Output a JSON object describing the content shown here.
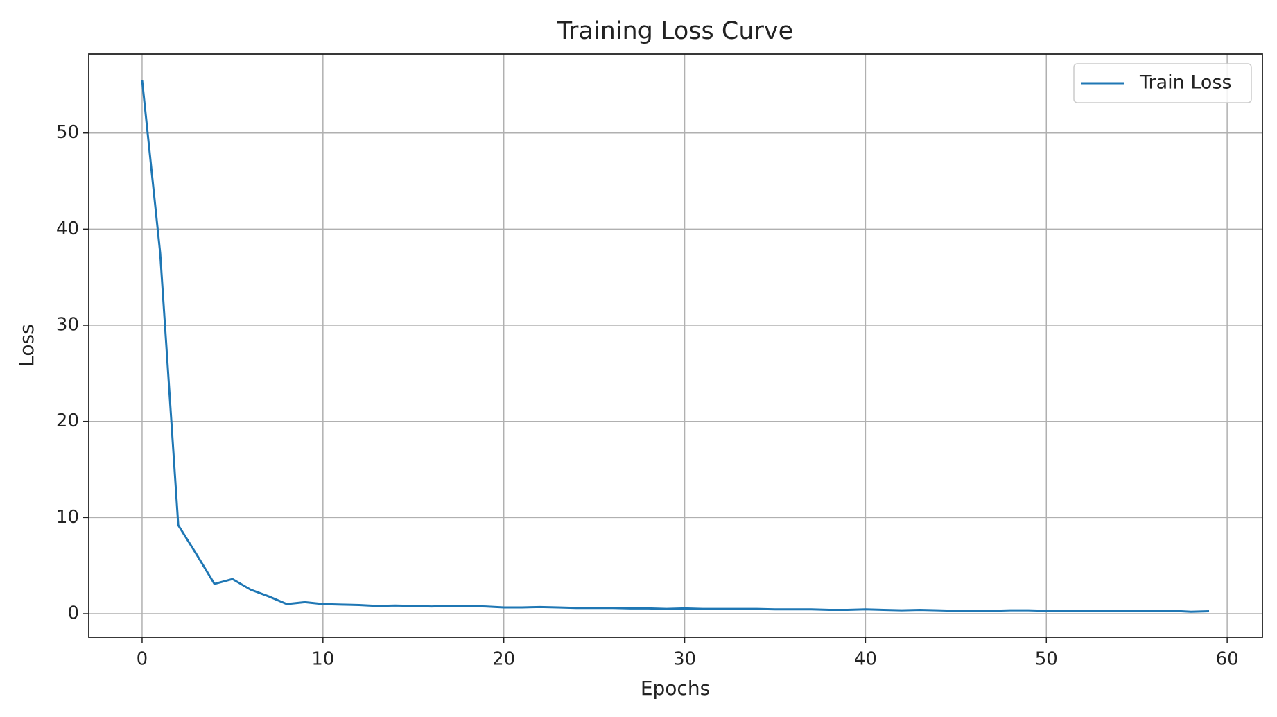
{
  "chart_data": {
    "type": "line",
    "title": "Training Loss Curve",
    "x_label": "Epochs",
    "y_label": "Loss",
    "x": [
      0,
      1,
      2,
      3,
      4,
      5,
      6,
      7,
      8,
      9,
      10,
      11,
      12,
      13,
      14,
      15,
      16,
      17,
      18,
      19,
      20,
      21,
      22,
      23,
      24,
      25,
      26,
      27,
      28,
      29,
      30,
      31,
      32,
      33,
      34,
      35,
      36,
      37,
      38,
      39,
      40,
      41,
      42,
      43,
      44,
      45,
      46,
      47,
      48,
      49,
      50,
      51,
      52,
      53,
      54,
      55,
      56,
      57,
      58,
      59
    ],
    "series": [
      {
        "name": "Train Loss",
        "color": "#1f77b4",
        "values": [
          55.5,
          37.5,
          9.2,
          6.2,
          3.1,
          3.6,
          2.5,
          1.8,
          1.0,
          1.2,
          1.0,
          0.95,
          0.9,
          0.8,
          0.85,
          0.8,
          0.75,
          0.8,
          0.8,
          0.75,
          0.65,
          0.65,
          0.7,
          0.65,
          0.6,
          0.6,
          0.6,
          0.55,
          0.55,
          0.5,
          0.55,
          0.5,
          0.5,
          0.5,
          0.5,
          0.45,
          0.45,
          0.45,
          0.4,
          0.4,
          0.45,
          0.4,
          0.35,
          0.4,
          0.35,
          0.3,
          0.3,
          0.3,
          0.35,
          0.35,
          0.3,
          0.3,
          0.3,
          0.3,
          0.3,
          0.25,
          0.3,
          0.3,
          0.2,
          0.25
        ]
      }
    ],
    "xlim": [
      -2.95,
      61.95
    ],
    "ylim": [
      -2.45,
      58.2
    ],
    "xticks": [
      0,
      10,
      20,
      30,
      40,
      50,
      60
    ],
    "yticks": [
      0,
      10,
      20,
      30,
      40,
      50
    ],
    "grid": true,
    "legend": "upper right"
  }
}
